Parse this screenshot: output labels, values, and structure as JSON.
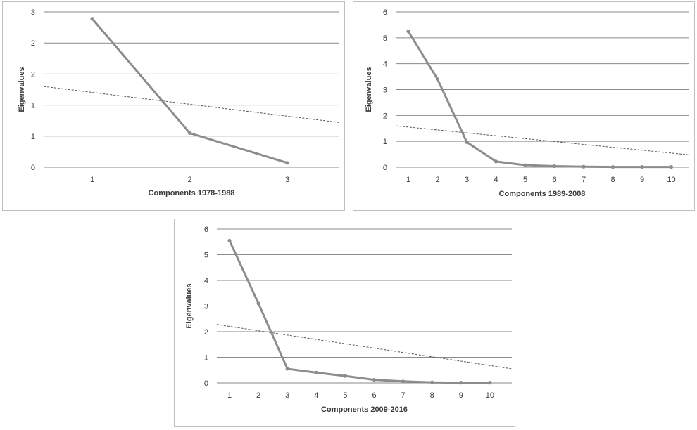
{
  "chart_data": [
    {
      "type": "line",
      "title": "",
      "xlabel": "Components 1978-1988",
      "ylabel": "Eigenvalues",
      "categories": [
        "1",
        "2",
        "3"
      ],
      "yticks": [
        "0",
        "1",
        "1",
        "2",
        "2",
        "3"
      ],
      "ylim": [
        0,
        2.5
      ],
      "grid": true,
      "series": [
        {
          "name": "Eigenvalues",
          "values": [
            2.39,
            0.55,
            0.07
          ]
        }
      ],
      "trendline": {
        "y_start": 1.3,
        "y_end": 0.72
      }
    },
    {
      "type": "line",
      "title": "",
      "xlabel": "Components 1989-2008",
      "ylabel": "Eigenvalues",
      "categories": [
        "1",
        "2",
        "3",
        "4",
        "5",
        "6",
        "7",
        "8",
        "9",
        "10"
      ],
      "yticks": [
        "0",
        "1",
        "2",
        "3",
        "4",
        "5",
        "6"
      ],
      "ylim": [
        0,
        6
      ],
      "grid": true,
      "series": [
        {
          "name": "Eigenvalues",
          "values": [
            5.25,
            3.4,
            0.97,
            0.22,
            0.08,
            0.04,
            0.02,
            0.01,
            0.01,
            0.01
          ]
        }
      ],
      "trendline": {
        "y_start": 1.6,
        "y_end": 0.48
      }
    },
    {
      "type": "line",
      "title": "",
      "xlabel": "Components 2009-2016",
      "ylabel": "Eigenvalues",
      "categories": [
        "1",
        "2",
        "3",
        "4",
        "5",
        "6",
        "7",
        "8",
        "9",
        "10"
      ],
      "yticks": [
        "0",
        "1",
        "2",
        "3",
        "4",
        "5",
        "6"
      ],
      "ylim": [
        0,
        6
      ],
      "grid": true,
      "series": [
        {
          "name": "Eigenvalues",
          "values": [
            5.55,
            3.1,
            0.55,
            0.4,
            0.27,
            0.12,
            0.06,
            0.02,
            0.01,
            0.01
          ]
        }
      ],
      "trendline": {
        "y_start": 2.28,
        "y_end": 0.55
      }
    }
  ]
}
